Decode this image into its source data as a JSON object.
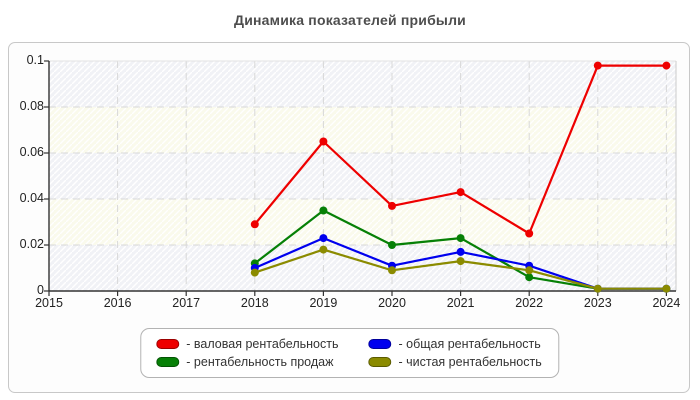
{
  "title": "Динамика показателей прибыли",
  "chart_data": {
    "type": "line",
    "x": [
      2015,
      2016,
      2017,
      2018,
      2019,
      2020,
      2021,
      2022,
      2023,
      2024
    ],
    "x_tick_labels": [
      "2015",
      "2016",
      "2017",
      "2018",
      "2019",
      "2020",
      "2021",
      "2022",
      "2023",
      "2024"
    ],
    "y_ticks": [
      0,
      0.02,
      0.04,
      0.06,
      0.08,
      0.1
    ],
    "y_tick_labels": [
      "0",
      "0.02",
      "0.04",
      "0.06",
      "0.08",
      "0.1"
    ],
    "ylim": [
      0,
      0.1
    ],
    "grid": "dashed",
    "legend_position": "bottom-center",
    "plot_band_colors": [
      "#f1f2f6",
      "#fafaec"
    ],
    "gridline_color": "#d8d8d8",
    "axis_color": "#333333",
    "series": [
      {
        "key": "gross-margin",
        "name": "валовая рентабельность",
        "legend_label": "- валовая рентабельность",
        "color": "#ee0000",
        "x": [
          2018,
          2019,
          2020,
          2021,
          2022,
          2023,
          2024
        ],
        "values": [
          0.029,
          0.065,
          0.037,
          0.043,
          0.025,
          0.098,
          0.098
        ]
      },
      {
        "key": "return-on-sales",
        "name": "рентабельность продаж",
        "legend_label": "- рентабельность продаж",
        "color": "#068006",
        "x": [
          2018,
          2019,
          2020,
          2021,
          2022,
          2023,
          2024
        ],
        "values": [
          0.012,
          0.035,
          0.02,
          0.023,
          0.006,
          0.001,
          0.001
        ]
      },
      {
        "key": "total-profitability",
        "name": "общая рентабельность",
        "legend_label": "- общая рентабельность",
        "color": "#0000ee",
        "x": [
          2018,
          2019,
          2020,
          2021,
          2022,
          2023,
          2024
        ],
        "values": [
          0.01,
          0.023,
          0.011,
          0.017,
          0.011,
          0.001,
          0.001
        ]
      },
      {
        "key": "net-profitability",
        "name": "чистая рентабельность",
        "legend_label": "- чистая рентабельность",
        "color": "#8b8b00",
        "x": [
          2018,
          2019,
          2020,
          2021,
          2022,
          2023,
          2024
        ],
        "values": [
          0.008,
          0.018,
          0.009,
          0.013,
          0.009,
          0.001,
          0.001
        ]
      }
    ]
  }
}
